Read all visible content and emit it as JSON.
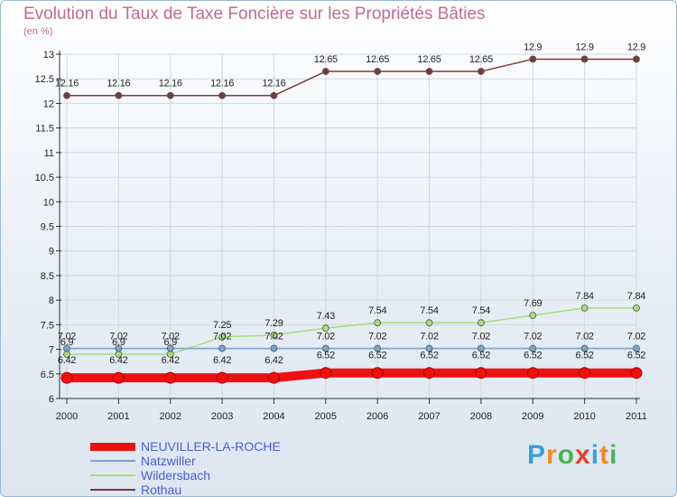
{
  "chart_data": {
    "type": "line",
    "title": "Evolution du Taux de Taxe Foncière sur les Propriétés Bâties",
    "ylabel": "(en %)",
    "xlabel": "",
    "ylim": [
      6,
      13
    ],
    "yticks": [
      "6",
      "6.5",
      "7",
      "7.5",
      "8",
      "8.5",
      "9",
      "9.5",
      "10",
      "10.5",
      "11",
      "11.5",
      "12",
      "12.5",
      "13"
    ],
    "categories": [
      "2000",
      "2001",
      "2002",
      "2003",
      "2004",
      "2005",
      "2006",
      "2007",
      "2008",
      "2009",
      "2010",
      "2011"
    ],
    "grid": true,
    "series": [
      {
        "name": "Rothau",
        "color": "#7a3a3a",
        "values": [
          12.16,
          12.16,
          12.16,
          12.16,
          12.16,
          12.65,
          12.65,
          12.65,
          12.65,
          12.9,
          12.9,
          12.9
        ],
        "labels": [
          "12.16",
          "12.16",
          "12.16",
          "12.16",
          "12.16",
          "12.65",
          "12.65",
          "12.65",
          "12.65",
          "12.9",
          "12.9",
          "12.9"
        ]
      },
      {
        "name": "Wildersbach",
        "color": "#a8dd7a",
        "values": [
          6.9,
          6.9,
          6.9,
          7.25,
          7.29,
          7.43,
          7.54,
          7.54,
          7.54,
          7.69,
          7.84,
          7.84
        ],
        "labels": [
          "6.9",
          "6.9",
          "6.9",
          "7.25",
          "7.29",
          "7.43",
          "7.54",
          "7.54",
          "7.54",
          "7.69",
          "7.84",
          "7.84"
        ]
      },
      {
        "name": "Natzwiller",
        "color": "#7aa6cf",
        "values": [
          7.02,
          7.02,
          7.02,
          7.02,
          7.02,
          7.02,
          7.02,
          7.02,
          7.02,
          7.02,
          7.02,
          7.02
        ],
        "labels": [
          "7.02",
          "7.02",
          "7.02",
          "7.02",
          "7.02",
          "7.02",
          "7.02",
          "7.02",
          "7.02",
          "7.02",
          "7.02",
          "7.02"
        ]
      },
      {
        "name": "NEUVILLER-LA-ROCHE",
        "color": "#ee1111",
        "values": [
          6.42,
          6.42,
          6.42,
          6.42,
          6.42,
          6.52,
          6.52,
          6.52,
          6.52,
          6.52,
          6.52,
          6.52
        ],
        "labels": [
          "6.42",
          "6.42",
          "6.42",
          "6.42",
          "6.42",
          "6.52",
          "6.52",
          "6.52",
          "6.52",
          "6.52",
          "6.52",
          "6.52"
        ]
      }
    ],
    "legend": [
      "NEUVILLER-LA-ROCHE",
      "Natzwiller",
      "Wildersbach",
      "Rothau"
    ]
  },
  "logo": {
    "letters": [
      "P",
      "r",
      "o",
      "x",
      "i",
      "t",
      "i"
    ],
    "colors": [
      "#3aa0d8",
      "#f08a1e",
      "#49b649",
      "#e8402a",
      "#3aa0d8",
      "#f08a1e",
      "#49b649"
    ]
  }
}
